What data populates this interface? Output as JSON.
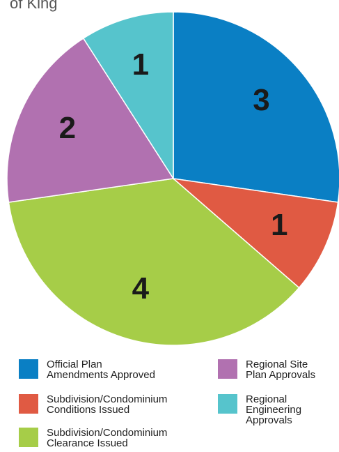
{
  "chart_data": {
    "type": "pie",
    "title": "of King",
    "categories": [
      "Official Plan\nAmendments Approved",
      "Subdivision/Condominium\nConditions Issued",
      "Subdivision/Condominium\nClearance Issued",
      "Regional Site\nPlan Approvals",
      "Regional\nEngineering\nApprovals"
    ],
    "values": [
      3,
      1,
      4,
      2,
      1
    ],
    "colors": [
      "#0a7fc4",
      "#e05a43",
      "#a6cd48",
      "#b171b0",
      "#56c4cc"
    ]
  }
}
